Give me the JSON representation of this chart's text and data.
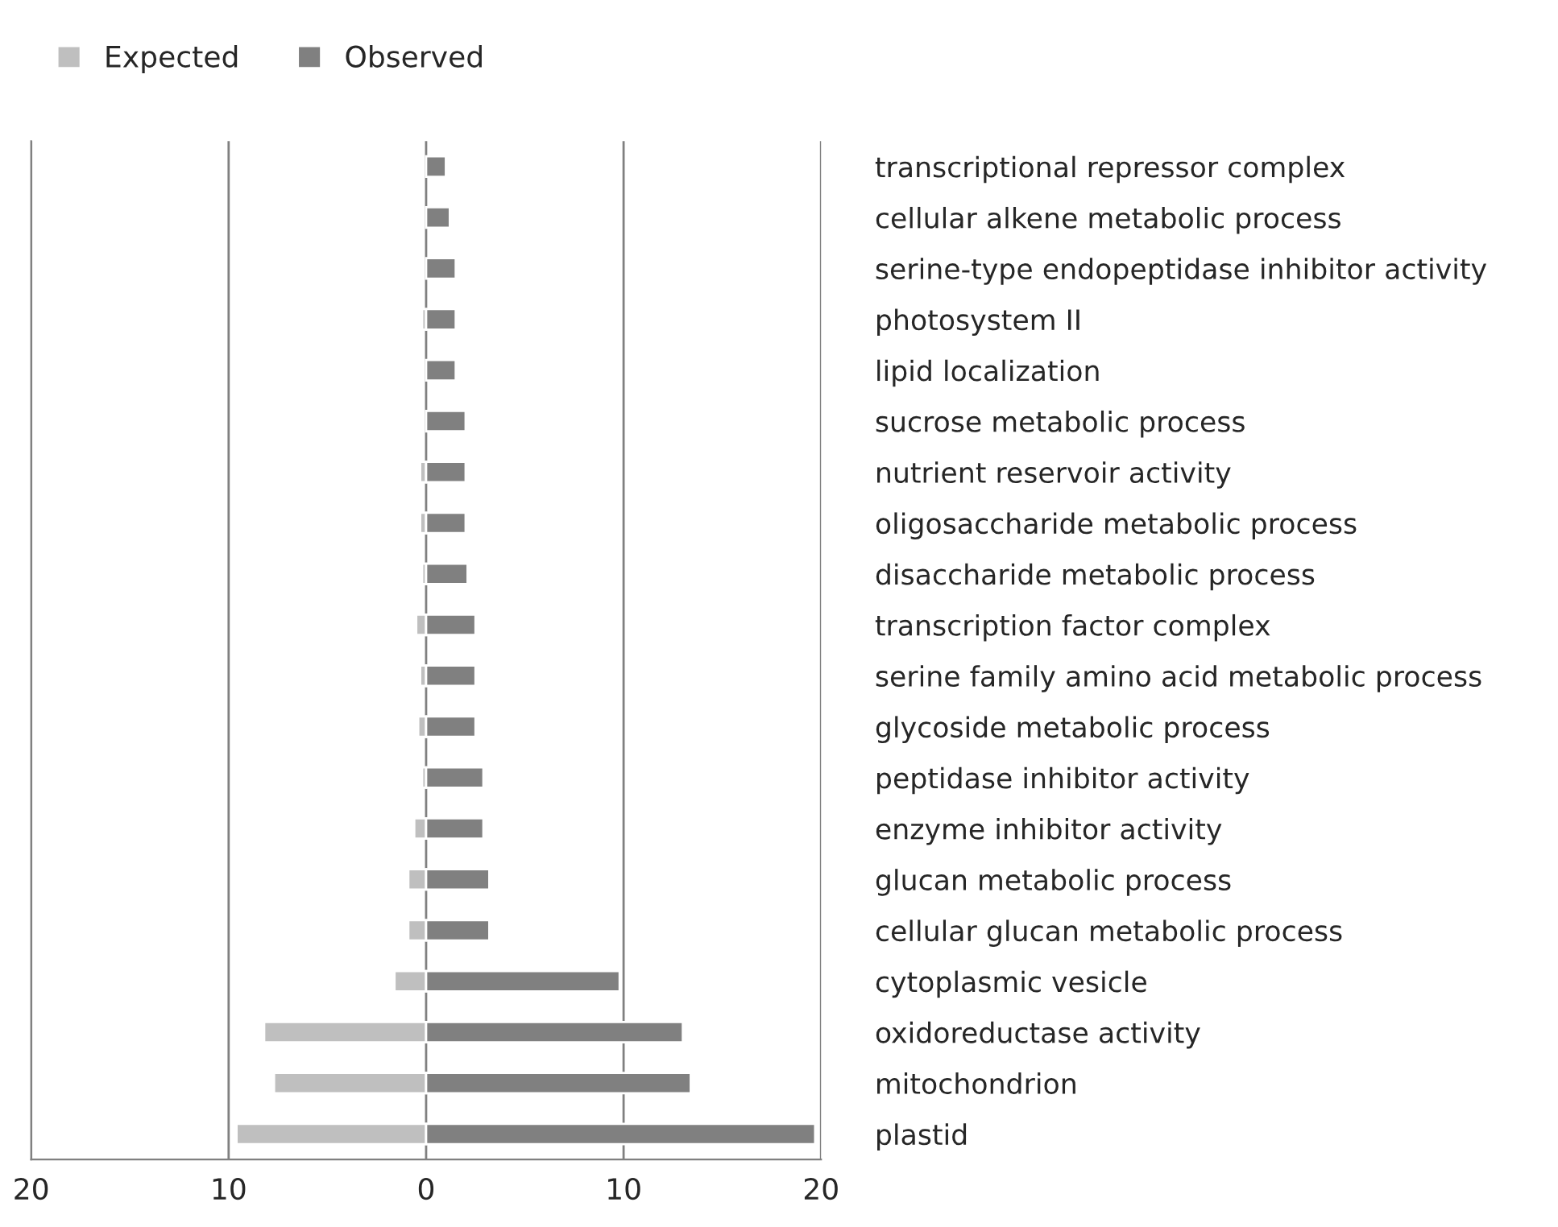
{
  "chart_data": {
    "type": "bar",
    "orientation": "horizontal",
    "categories": [
      "transcriptional repressor complex",
      "cellular alkene metabolic process",
      "serine-type endopeptidase inhibitor activity",
      "photosystem II",
      "lipid localization",
      "sucrose metabolic process",
      "nutrient reservoir activity",
      "oligosaccharide metabolic process",
      "disaccharide metabolic process",
      "transcription factor complex",
      "serine family amino acid metabolic process",
      "glycoside metabolic process",
      "peptidase inhibitor activity",
      "enzyme inhibitor activity",
      "glucan metabolic process",
      "cellular glucan metabolic process",
      "cytoplasmic vesicle",
      "oxidoreductase activity",
      "mitochondrion",
      "plastid"
    ],
    "series": [
      {
        "name": "Expected",
        "color": "#bfbfbf",
        "values": [
          null,
          null,
          null,
          -0.2,
          null,
          null,
          -0.3,
          -0.3,
          -0.2,
          -0.5,
          -0.3,
          -0.4,
          -0.2,
          -0.6,
          -0.9,
          -0.9,
          -1.6,
          -8.2,
          -7.7,
          -9.6
        ]
      },
      {
        "name": "Observed",
        "color": "#808080",
        "values": [
          1.0,
          1.2,
          1.5,
          1.5,
          1.5,
          2.0,
          2.0,
          2.0,
          2.1,
          2.5,
          2.5,
          2.5,
          2.9,
          2.9,
          3.2,
          3.2,
          9.8,
          13.0,
          13.4,
          19.7
        ]
      }
    ],
    "xlim": [
      -20,
      20
    ],
    "xticks": [
      {
        "value": -20,
        "label": "20"
      },
      {
        "value": -10,
        "label": "10"
      },
      0,
      10,
      20
    ],
    "grid": "x",
    "legend": "top left",
    "stacked": true
  }
}
